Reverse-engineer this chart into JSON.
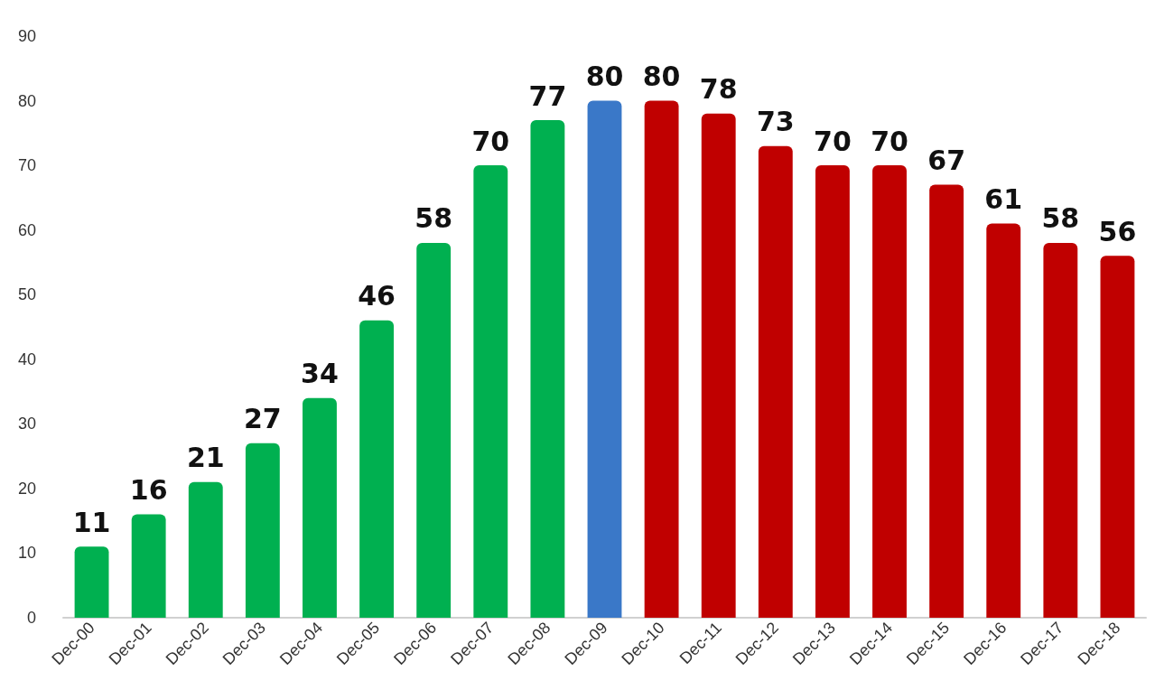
{
  "chart_data": {
    "type": "bar",
    "categories": [
      "Dec-00",
      "Dec-01",
      "Dec-02",
      "Dec-03",
      "Dec-04",
      "Dec-05",
      "Dec-06",
      "Dec-07",
      "Dec-08",
      "Dec-09",
      "Dec-10",
      "Dec-11",
      "Dec-12",
      "Dec-13",
      "Dec-14",
      "Dec-15",
      "Dec-16",
      "Dec-17",
      "Dec-18"
    ],
    "values": [
      11,
      16,
      21,
      27,
      34,
      46,
      58,
      70,
      77,
      80,
      80,
      78,
      73,
      70,
      70,
      67,
      61,
      58,
      56
    ],
    "colors": [
      "#00b050",
      "#00b050",
      "#00b050",
      "#00b050",
      "#00b050",
      "#00b050",
      "#00b050",
      "#00b050",
      "#00b050",
      "#3a78c8",
      "#c00000",
      "#c00000",
      "#c00000",
      "#c00000",
      "#c00000",
      "#c00000",
      "#c00000",
      "#c00000",
      "#c00000"
    ],
    "ylim": [
      0,
      90
    ],
    "yticks": [
      0,
      10,
      20,
      30,
      40,
      50,
      60,
      70,
      80,
      90
    ],
    "grid": false,
    "data_labels": true
  }
}
